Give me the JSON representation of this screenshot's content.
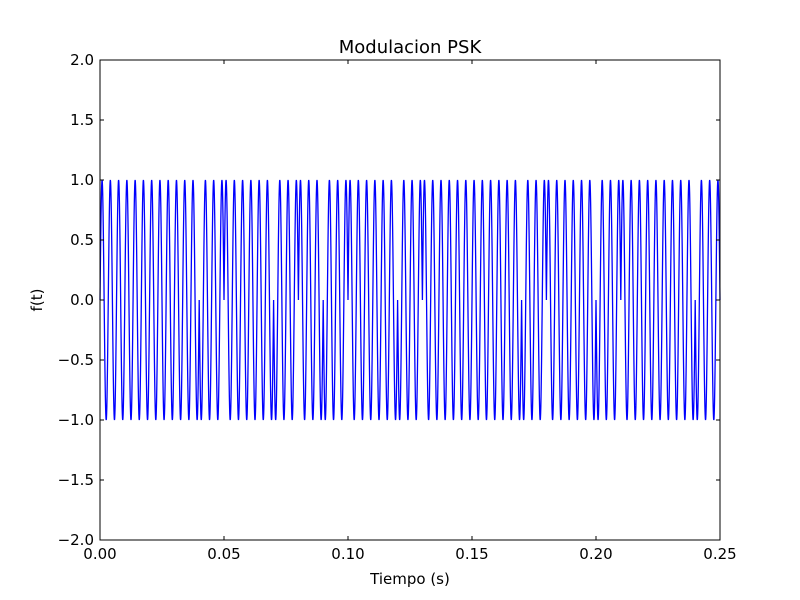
{
  "chart_data": {
    "type": "line",
    "title": "Modulacion PSK",
    "xlabel": "Tiempo (s)",
    "ylabel": "f(t)",
    "xlim": [
      0.0,
      0.25
    ],
    "ylim": [
      -2.0,
      2.0
    ],
    "grid": false,
    "x_ticks": [
      0.0,
      0.05,
      0.1,
      0.15,
      0.2,
      0.25
    ],
    "x_tick_labels": [
      "0.00",
      "0.05",
      "0.10",
      "0.15",
      "0.20",
      "0.25"
    ],
    "y_ticks": [
      -2.0,
      -1.5,
      -1.0,
      -0.5,
      0.0,
      0.5,
      1.0,
      1.5,
      2.0
    ],
    "y_tick_labels": [
      "−2.0",
      "−1.5",
      "−1.0",
      "−0.5",
      "0.0",
      "0.5",
      "1.0",
      "1.5",
      "2.0"
    ],
    "series": [
      {
        "color": "#0000ff",
        "function": "sin",
        "carrier_hz": 300,
        "amplitude": 1.0,
        "bit_duration_s": 0.01,
        "phase_rad": [
          0,
          0,
          0,
          0,
          3.14159,
          0,
          0,
          3.14159,
          0,
          3.14159,
          0,
          0,
          3.14159,
          0,
          0,
          0,
          0,
          3.14159,
          0,
          0,
          3.14159,
          0,
          0,
          0,
          3.14159
        ]
      }
    ]
  }
}
